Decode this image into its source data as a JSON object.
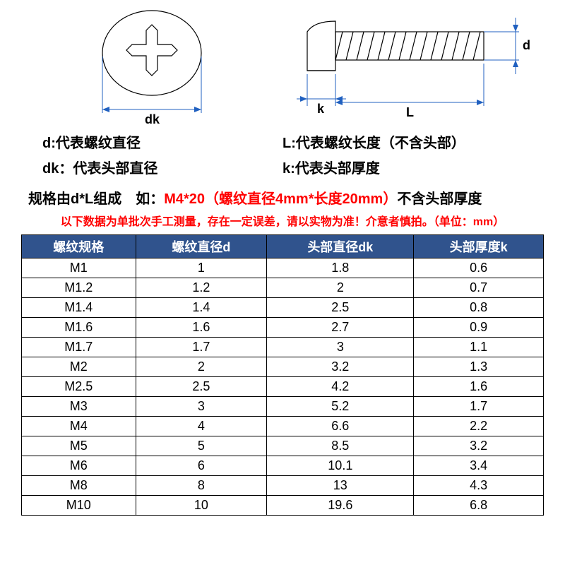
{
  "diagram": {
    "labels": {
      "dk": "dk",
      "k": "k",
      "L": "L",
      "d": "d"
    },
    "colors": {
      "dim_line": "#2060c0",
      "part_outline": "#000000",
      "bg": "#ffffff"
    }
  },
  "legend": {
    "d": "d:代表螺纹直径",
    "L": "L:代表螺纹长度（不含头部）",
    "dk": "dk：代表头部直径",
    "k": "k:代表头部厚度"
  },
  "spec_line": {
    "prefix": "规格由d*L组成　如：",
    "example": "M4*20（螺纹直径4mm*长度20mm）",
    "suffix": "不含头部厚度"
  },
  "warning": "以下数据为单批次手工测量，存在一定误差，请以实物为准！介意者慎拍。（单位：mm）",
  "table": {
    "header_bg": "#30538d",
    "header_fg": "#ffffff",
    "border_color": "#000000",
    "font_size": 18,
    "columns": [
      "螺纹规格",
      "螺纹直径d",
      "头部直径dk",
      "头部厚度k"
    ],
    "rows": [
      [
        "M1",
        "1",
        "1.8",
        "0.6"
      ],
      [
        "M1.2",
        "1.2",
        "2",
        "0.7"
      ],
      [
        "M1.4",
        "1.4",
        "2.5",
        "0.8"
      ],
      [
        "M1.6",
        "1.6",
        "2.7",
        "0.9"
      ],
      [
        "M1.7",
        "1.7",
        "3",
        "1.1"
      ],
      [
        "M2",
        "2",
        "3.2",
        "1.3"
      ],
      [
        "M2.5",
        "2.5",
        "4.2",
        "1.6"
      ],
      [
        "M3",
        "3",
        "5.2",
        "1.7"
      ],
      [
        "M4",
        "4",
        "6.6",
        "2.2"
      ],
      [
        "M5",
        "5",
        "8.5",
        "3.2"
      ],
      [
        "M6",
        "6",
        "10.1",
        "3.4"
      ],
      [
        "M8",
        "8",
        "13",
        "4.3"
      ],
      [
        "M10",
        "10",
        "19.6",
        "6.8"
      ]
    ]
  }
}
